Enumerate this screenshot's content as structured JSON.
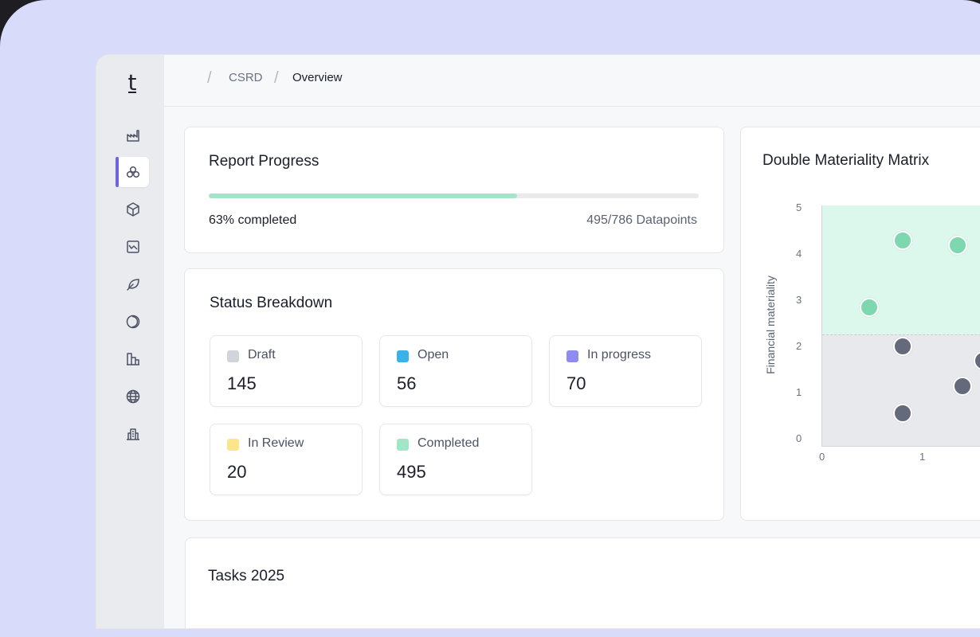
{
  "breadcrumb": {
    "section": "CSRD",
    "page": "Overview"
  },
  "logo": {
    "text": "t"
  },
  "sidebar": {
    "items": [
      {
        "icon": "factory-icon"
      },
      {
        "icon": "hexagons-icon",
        "active": true
      },
      {
        "icon": "cube-icon"
      },
      {
        "icon": "chart-down-icon"
      },
      {
        "icon": "leaf-icon"
      },
      {
        "icon": "moon-icon"
      },
      {
        "icon": "buildings-icon"
      },
      {
        "icon": "globe-icon"
      },
      {
        "icon": "city-icon"
      }
    ]
  },
  "report_progress": {
    "title": "Report Progress",
    "percent": 63,
    "completed_label": "63% completed",
    "datapoints_label": "495/786 Datapoints"
  },
  "status_breakdown": {
    "title": "Status Breakdown",
    "items": [
      {
        "label": "Draft",
        "value": "145",
        "color": "#d1d5db"
      },
      {
        "label": "Open",
        "value": "56",
        "color": "#38b2e8"
      },
      {
        "label": "In progress",
        "value": "70",
        "color": "#8e8cf0"
      },
      {
        "label": "In Review",
        "value": "20",
        "color": "#fde68a"
      },
      {
        "label": "Completed",
        "value": "495",
        "color": "#a3e6c7"
      }
    ]
  },
  "matrix": {
    "title": "Double Materiality Matrix",
    "ylabel": "Financial materiality",
    "yticks": [
      "0",
      "1",
      "2",
      "3",
      "4",
      "5"
    ],
    "xticks": [
      "0",
      "1"
    ]
  },
  "chart_data": {
    "type": "scatter",
    "title": "Double Materiality Matrix",
    "xlabel": "",
    "ylabel": "Financial materiality",
    "ylim": [
      0,
      5
    ],
    "threshold": 2.4,
    "points": [
      {
        "x": 0.8,
        "y": 4.45,
        "material": true
      },
      {
        "x": 1.35,
        "y": 4.35,
        "material": true
      },
      {
        "x": 0.47,
        "y": 3.0,
        "material": true
      },
      {
        "x": 0.8,
        "y": 2.15,
        "material": false
      },
      {
        "x": 1.4,
        "y": 1.3,
        "material": false
      },
      {
        "x": 0.8,
        "y": 0.7,
        "material": false
      },
      {
        "x": 1.6,
        "y": 1.85,
        "material": false
      }
    ],
    "colors": {
      "material": "#7dd8b0",
      "non_material": "#646a7b"
    }
  },
  "tasks": {
    "title": "Tasks 2025"
  }
}
